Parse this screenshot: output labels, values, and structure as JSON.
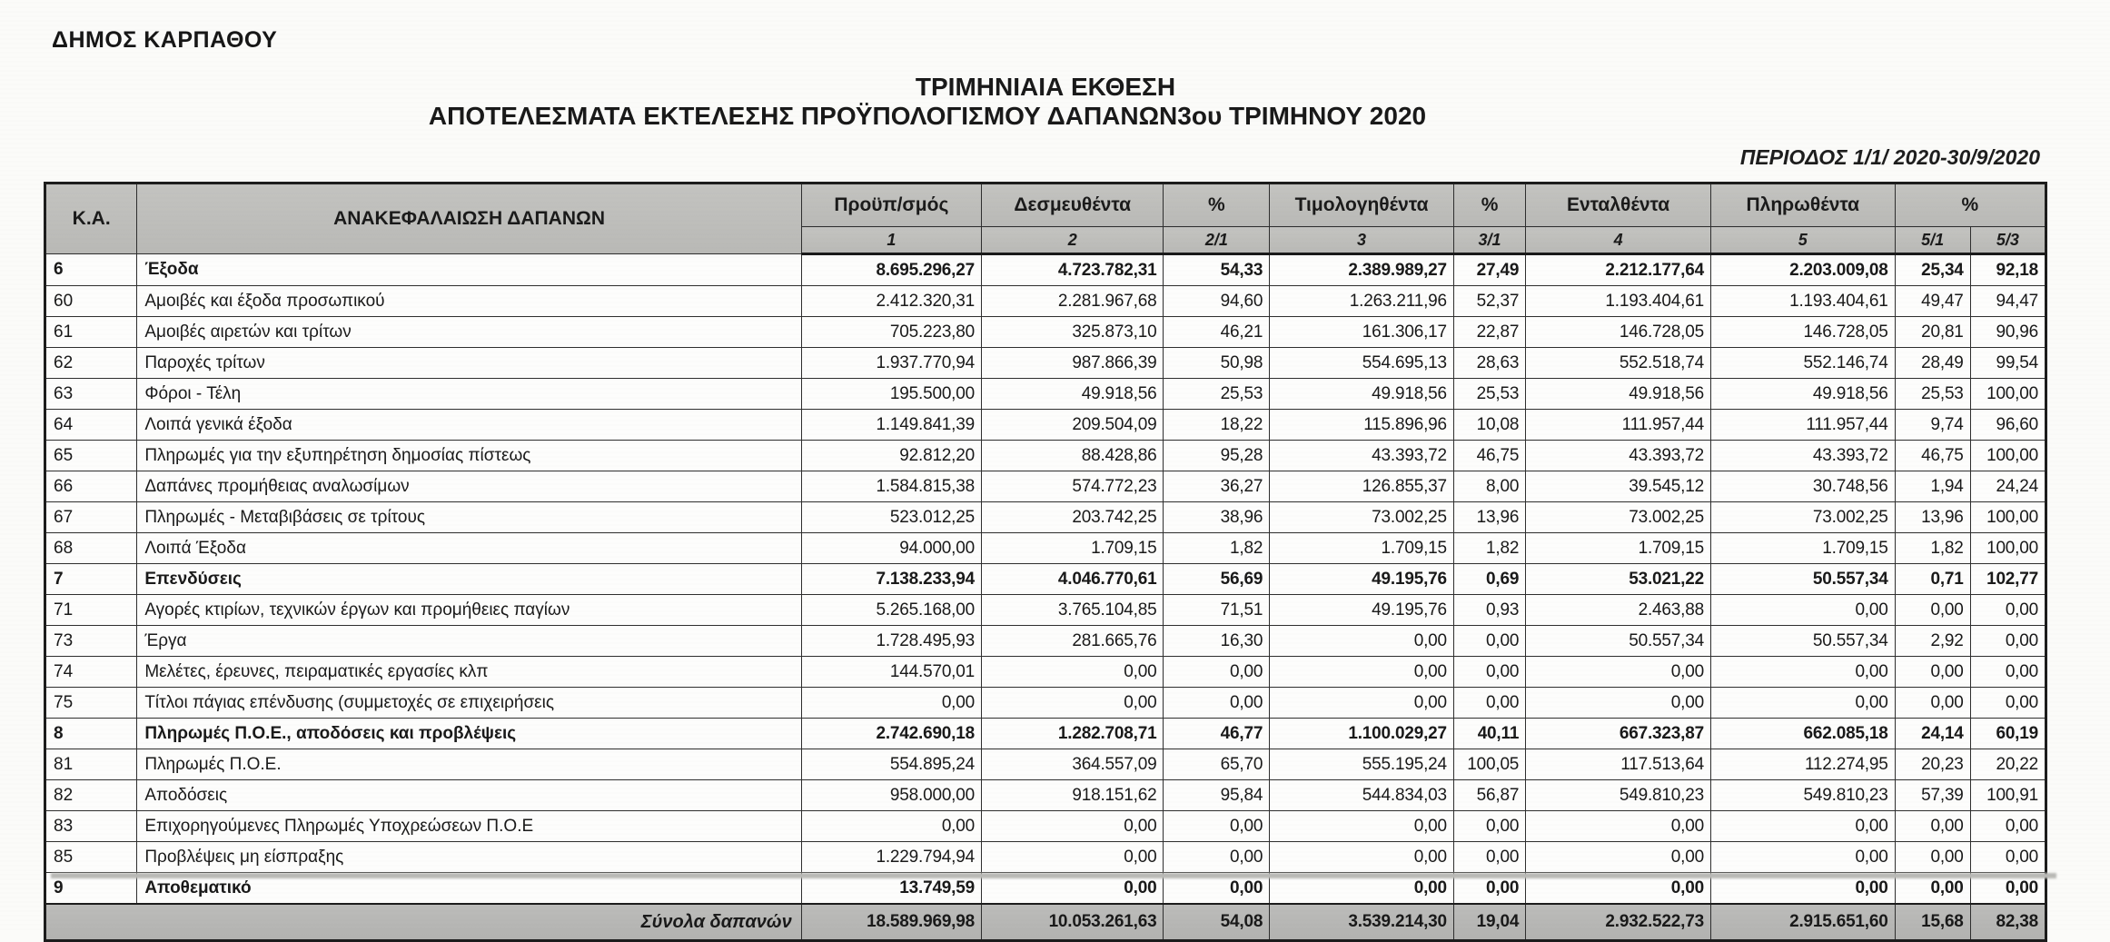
{
  "page": {
    "org_name": "ΔΗΜΟΣ ΚΑΡΠΑΘΟΥ",
    "title_line1": "ΤΡΙΜΗΝΙΑΙΑ ΕΚΘΕΣΗ",
    "title_line2": "ΑΠΟΤΕΛΕΣΜΑΤΑ ΕΚΤΕΛΕΣΗΣ ΠΡΟΫΠΟΛΟΓΙΣΜΟΥ ΔΑΠΑΝΩΝ3ου ΤΡΙΜΗΝΟΥ 2020",
    "period": "ΠΕΡΙΟΔΟΣ 1/1/ 2020-30/9/2020"
  },
  "colors": {
    "header_fill": "#bdbdba",
    "totals_fill": "#b6b6b4",
    "border": "#2e2e2e",
    "text": "#191919"
  },
  "table": {
    "header": {
      "ka": "Κ.Α.",
      "recap": "ΑΝΑΚΕΦΑΛΑΙΩΣΗ ΔΑΠΑΝΩΝ",
      "cols": [
        "Προϋπ/σμός",
        "Δεσμευθέντα",
        "%",
        "Τιμολογηθέντα",
        "%",
        "Ενταλθέντα",
        "Πληρωθέντα",
        "%"
      ],
      "subs": [
        "1",
        "2",
        "2/1",
        "3",
        "3/1",
        "4",
        "5",
        "5/1",
        "5/3"
      ]
    },
    "rows": [
      {
        "ka": "6",
        "label": "Έξοδα",
        "bold": true,
        "values": [
          "8.695.296,27",
          "4.723.782,31",
          "54,33",
          "2.389.989,27",
          "27,49",
          "2.212.177,64",
          "2.203.009,08",
          "25,34",
          "92,18"
        ]
      },
      {
        "ka": "60",
        "label": "Αμοιβές και έξοδα προσωπικού",
        "bold": false,
        "values": [
          "2.412.320,31",
          "2.281.967,68",
          "94,60",
          "1.263.211,96",
          "52,37",
          "1.193.404,61",
          "1.193.404,61",
          "49,47",
          "94,47"
        ]
      },
      {
        "ka": "61",
        "label": "Αμοιβές αιρετών και τρίτων",
        "bold": false,
        "values": [
          "705.223,80",
          "325.873,10",
          "46,21",
          "161.306,17",
          "22,87",
          "146.728,05",
          "146.728,05",
          "20,81",
          "90,96"
        ]
      },
      {
        "ka": "62",
        "label": "Παροχές τρίτων",
        "bold": false,
        "values": [
          "1.937.770,94",
          "987.866,39",
          "50,98",
          "554.695,13",
          "28,63",
          "552.518,74",
          "552.146,74",
          "28,49",
          "99,54"
        ]
      },
      {
        "ka": "63",
        "label": "Φόροι - Τέλη",
        "bold": false,
        "values": [
          "195.500,00",
          "49.918,56",
          "25,53",
          "49.918,56",
          "25,53",
          "49.918,56",
          "49.918,56",
          "25,53",
          "100,00"
        ]
      },
      {
        "ka": "64",
        "label": "Λοιπά γενικά έξοδα",
        "bold": false,
        "values": [
          "1.149.841,39",
          "209.504,09",
          "18,22",
          "115.896,96",
          "10,08",
          "111.957,44",
          "111.957,44",
          "9,74",
          "96,60"
        ]
      },
      {
        "ka": "65",
        "label": "Πληρωμές για την εξυπηρέτηση δημοσίας πίστεως",
        "bold": false,
        "values": [
          "92.812,20",
          "88.428,86",
          "95,28",
          "43.393,72",
          "46,75",
          "43.393,72",
          "43.393,72",
          "46,75",
          "100,00"
        ]
      },
      {
        "ka": "66",
        "label": "Δαπάνες προμήθειας αναλωσίμων",
        "bold": false,
        "values": [
          "1.584.815,38",
          "574.772,23",
          "36,27",
          "126.855,37",
          "8,00",
          "39.545,12",
          "30.748,56",
          "1,94",
          "24,24"
        ]
      },
      {
        "ka": "67",
        "label": "Πληρωμές - Μεταβιβάσεις σε τρίτους",
        "bold": false,
        "values": [
          "523.012,25",
          "203.742,25",
          "38,96",
          "73.002,25",
          "13,96",
          "73.002,25",
          "73.002,25",
          "13,96",
          "100,00"
        ]
      },
      {
        "ka": "68",
        "label": "Λοιπά Έξοδα",
        "bold": false,
        "values": [
          "94.000,00",
          "1.709,15",
          "1,82",
          "1.709,15",
          "1,82",
          "1.709,15",
          "1.709,15",
          "1,82",
          "100,00"
        ]
      },
      {
        "ka": "7",
        "label": "Επενδύσεις",
        "bold": true,
        "values": [
          "7.138.233,94",
          "4.046.770,61",
          "56,69",
          "49.195,76",
          "0,69",
          "53.021,22",
          "50.557,34",
          "0,71",
          "102,77"
        ]
      },
      {
        "ka": "71",
        "label": "Αγορές κτιρίων, τεχνικών έργων και προμήθειες παγίων",
        "bold": false,
        "values": [
          "5.265.168,00",
          "3.765.104,85",
          "71,51",
          "49.195,76",
          "0,93",
          "2.463,88",
          "0,00",
          "0,00",
          "0,00"
        ]
      },
      {
        "ka": "73",
        "label": "Έργα",
        "bold": false,
        "values": [
          "1.728.495,93",
          "281.665,76",
          "16,30",
          "0,00",
          "0,00",
          "50.557,34",
          "50.557,34",
          "2,92",
          "0,00"
        ]
      },
      {
        "ka": "74",
        "label": "Μελέτες, έρευνες, πειραματικές εργασίες κλπ",
        "bold": false,
        "values": [
          "144.570,01",
          "0,00",
          "0,00",
          "0,00",
          "0,00",
          "0,00",
          "0,00",
          "0,00",
          "0,00"
        ]
      },
      {
        "ka": "75",
        "label": "Τίτλοι πάγιας επένδυσης (συμμετοχές σε επιχειρήσεις",
        "bold": false,
        "values": [
          "0,00",
          "0,00",
          "0,00",
          "0,00",
          "0,00",
          "0,00",
          "0,00",
          "0,00",
          "0,00"
        ]
      },
      {
        "ka": "8",
        "label": "Πληρωμές Π.Ο.Ε., αποδόσεις και προβλέψεις",
        "bold": true,
        "values": [
          "2.742.690,18",
          "1.282.708,71",
          "46,77",
          "1.100.029,27",
          "40,11",
          "667.323,87",
          "662.085,18",
          "24,14",
          "60,19"
        ]
      },
      {
        "ka": "81",
        "label": "Πληρωμές Π.Ο.Ε.",
        "bold": false,
        "values": [
          "554.895,24",
          "364.557,09",
          "65,70",
          "555.195,24",
          "100,05",
          "117.513,64",
          "112.274,95",
          "20,23",
          "20,22"
        ]
      },
      {
        "ka": "82",
        "label": "Αποδόσεις",
        "bold": false,
        "values": [
          "958.000,00",
          "918.151,62",
          "95,84",
          "544.834,03",
          "56,87",
          "549.810,23",
          "549.810,23",
          "57,39",
          "100,91"
        ]
      },
      {
        "ka": "83",
        "label": "Επιχορηγούμενες Πληρωμές Υποχρεώσεων Π.Ο.Ε",
        "bold": false,
        "values": [
          "0,00",
          "0,00",
          "0,00",
          "0,00",
          "0,00",
          "0,00",
          "0,00",
          "0,00",
          "0,00"
        ]
      },
      {
        "ka": "85",
        "label": "Προβλέψεις μη είσπραξης",
        "bold": false,
        "values": [
          "1.229.794,94",
          "0,00",
          "0,00",
          "0,00",
          "0,00",
          "0,00",
          "0,00",
          "0,00",
          "0,00"
        ]
      },
      {
        "ka": "9",
        "label": "Αποθεματικό",
        "bold": true,
        "values": [
          "13.749,59",
          "0,00",
          "0,00",
          "0,00",
          "0,00",
          "0,00",
          "0,00",
          "0,00",
          "0,00"
        ]
      }
    ],
    "totals": {
      "label": "Σύνολα δαπανών",
      "values": [
        "18.589.969,98",
        "10.053.261,63",
        "54,08",
        "3.539.214,30",
        "19,04",
        "2.932.522,73",
        "2.915.651,60",
        "15,68",
        "82,38"
      ]
    }
  }
}
